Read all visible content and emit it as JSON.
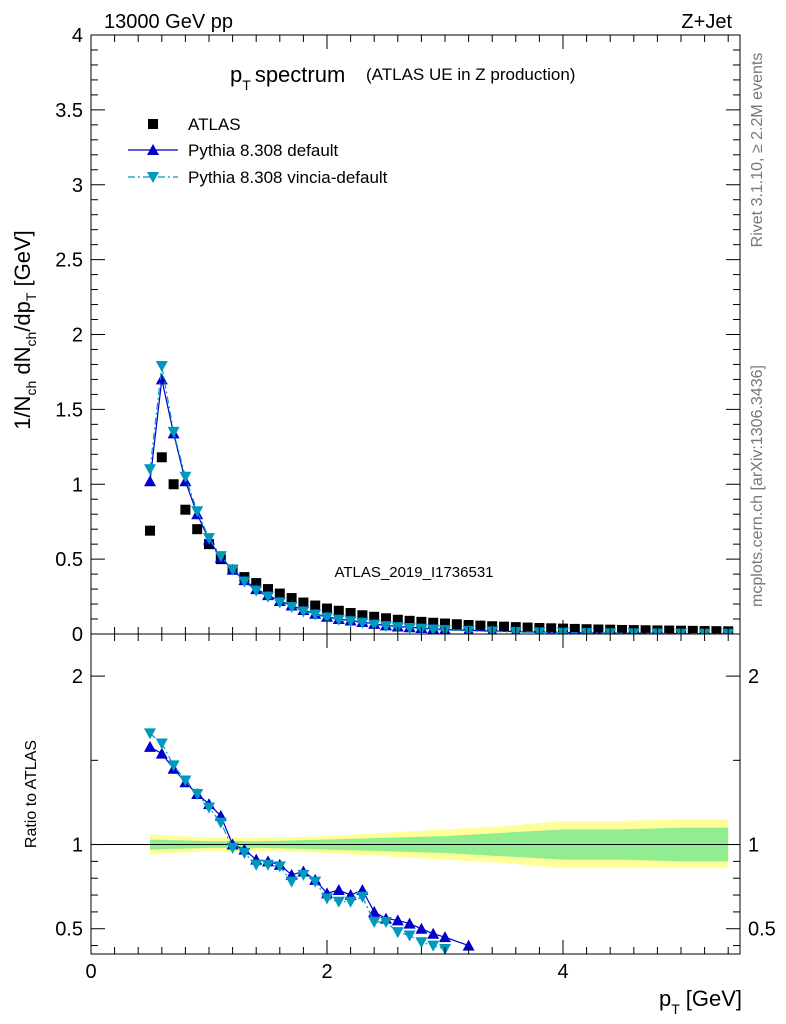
{
  "header": {
    "left": "13000 GeV pp",
    "right": "Z+Jet"
  },
  "side_labels": {
    "rivet": "Rivet 3.1.10, ≥ 2.2M events",
    "mcplots": "mcplots.cern.ch [arXiv:1306.3436]"
  },
  "watermark": "ATLAS_2019_I1736531",
  "colors": {
    "atlas": "#000000",
    "pythia_default": "#0000cc",
    "pythia_vincia": "#0099bb",
    "band_inner": "#90ee90",
    "band_outer": "#ffff99"
  },
  "chart_data": [
    {
      "type": "scatter",
      "title_main": "p",
      "title_sub": "T",
      "title_rest": "spectrum",
      "title_note": "(ATLAS UE in Z production)",
      "ylabel": "1/N_ch dN_ch/dp_T [GeV]",
      "xlim": [
        0,
        5.5
      ],
      "ylim": [
        0,
        4
      ],
      "yticks": [
        "0",
        "0.5",
        "1",
        "1.5",
        "2",
        "2.5",
        "3",
        "3.5",
        "4"
      ],
      "legend_position": "top-left",
      "series": [
        {
          "name": "ATLAS",
          "marker": "square",
          "x": [
            0.5,
            0.6,
            0.7,
            0.8,
            0.9,
            1.0,
            1.1,
            1.2,
            1.3,
            1.4,
            1.5,
            1.6,
            1.7,
            1.8,
            1.9,
            2.0,
            2.1,
            2.2,
            2.3,
            2.4,
            2.5,
            2.6,
            2.7,
            2.8,
            2.9,
            3.0,
            3.1,
            3.2,
            3.3,
            3.4,
            3.5,
            3.6,
            3.7,
            3.8,
            3.9,
            4.0,
            4.1,
            4.2,
            4.3,
            4.4,
            4.5,
            4.6,
            4.7,
            4.8,
            4.9,
            5.0,
            5.1,
            5.2,
            5.3,
            5.4
          ],
          "y": [
            0.69,
            1.18,
            1.0,
            0.83,
            0.7,
            0.6,
            0.5,
            0.43,
            0.38,
            0.34,
            0.3,
            0.27,
            0.24,
            0.21,
            0.19,
            0.17,
            0.155,
            0.14,
            0.125,
            0.115,
            0.105,
            0.095,
            0.088,
            0.081,
            0.075,
            0.07,
            0.065,
            0.06,
            0.056,
            0.052,
            0.049,
            0.046,
            0.043,
            0.04,
            0.038,
            0.036,
            0.034,
            0.032,
            0.03,
            0.029,
            0.027,
            0.026,
            0.025,
            0.024,
            0.023,
            0.022,
            0.021,
            0.02,
            0.019,
            0.018
          ]
        },
        {
          "name": "Pythia 8.308 default",
          "marker": "triangle-up",
          "line": "solid",
          "x": [
            0.5,
            0.6,
            0.7,
            0.8,
            0.9,
            1.0,
            1.1,
            1.2,
            1.3,
            1.4,
            1.5,
            1.6,
            1.7,
            1.8,
            1.9,
            2.0,
            2.1,
            2.2,
            2.3,
            2.4,
            2.5,
            2.6,
            2.7,
            2.8,
            2.9,
            3.0,
            3.2,
            3.4,
            3.6,
            3.8,
            4.0,
            4.2,
            4.4,
            4.6,
            4.8,
            5.0,
            5.2,
            5.4
          ],
          "y": [
            1.02,
            1.7,
            1.34,
            1.02,
            0.8,
            0.63,
            0.51,
            0.43,
            0.36,
            0.3,
            0.26,
            0.22,
            0.19,
            0.16,
            0.135,
            0.115,
            0.1,
            0.09,
            0.08,
            0.068,
            0.058,
            0.05,
            0.045,
            0.04,
            0.035,
            0.03,
            0.024,
            0.02,
            0.016,
            0.013,
            0.01,
            0.008,
            0.006,
            0.005,
            0.004,
            0.003,
            0.002,
            0.0015
          ]
        },
        {
          "name": "Pythia 8.308 vincia-default",
          "marker": "triangle-down",
          "line": "dashdot",
          "x": [
            0.5,
            0.6,
            0.7,
            0.8,
            0.9,
            1.0,
            1.1,
            1.2,
            1.3,
            1.4,
            1.5,
            1.6,
            1.7,
            1.8,
            1.9,
            2.0,
            2.1,
            2.2,
            2.3,
            2.4,
            2.5,
            2.6,
            2.7,
            2.8,
            2.9,
            3.0,
            3.2,
            3.4,
            3.6,
            3.8,
            4.0,
            4.2,
            4.4,
            4.6,
            4.8,
            5.0,
            5.2,
            5.4
          ],
          "y": [
            1.1,
            1.79,
            1.35,
            1.05,
            0.82,
            0.64,
            0.52,
            0.43,
            0.35,
            0.29,
            0.25,
            0.21,
            0.18,
            0.15,
            0.13,
            0.11,
            0.095,
            0.085,
            0.075,
            0.063,
            0.053,
            0.046,
            0.04,
            0.035,
            0.03,
            0.026,
            0.021,
            0.017,
            0.014,
            0.011,
            0.009,
            0.007,
            0.005,
            0.004,
            0.003,
            0.0025,
            0.002,
            0.0015
          ]
        }
      ]
    },
    {
      "type": "line",
      "ylabel": "Ratio to ATLAS",
      "xlabel_main": "p",
      "xlabel_sub": "T",
      "xlabel_rest": "[GeV]",
      "xlim": [
        0,
        5.5
      ],
      "ylim": [
        0.35,
        2.25
      ],
      "xticks": [
        "0",
        "2",
        "4"
      ],
      "yticks": [
        "0.5",
        "1",
        "2"
      ],
      "reference_line": 1,
      "band_x": [
        0.5,
        1.0,
        1.5,
        2.0,
        2.5,
        3.0,
        3.5,
        4.0,
        4.5,
        5.0,
        5.4
      ],
      "band_inner_lo": [
        0.97,
        0.98,
        0.98,
        0.97,
        0.96,
        0.95,
        0.93,
        0.91,
        0.91,
        0.9,
        0.9
      ],
      "band_inner_hi": [
        1.03,
        1.02,
        1.02,
        1.03,
        1.04,
        1.05,
        1.07,
        1.09,
        1.09,
        1.1,
        1.1
      ],
      "band_outer_lo": [
        0.94,
        0.96,
        0.96,
        0.95,
        0.93,
        0.91,
        0.89,
        0.86,
        0.86,
        0.86,
        0.86
      ],
      "band_outer_hi": [
        1.06,
        1.04,
        1.04,
        1.05,
        1.07,
        1.09,
        1.11,
        1.14,
        1.14,
        1.15,
        1.15
      ],
      "series": [
        {
          "name": "Pythia 8.308 default",
          "marker": "triangle-up",
          "x": [
            0.5,
            0.6,
            0.7,
            0.8,
            0.9,
            1.0,
            1.1,
            1.2,
            1.3,
            1.4,
            1.5,
            1.6,
            1.7,
            1.8,
            1.9,
            2.0,
            2.1,
            2.2,
            2.3,
            2.4,
            2.5,
            2.6,
            2.7,
            2.8,
            2.9,
            3.0,
            3.2
          ],
          "y": [
            1.58,
            1.54,
            1.45,
            1.37,
            1.3,
            1.24,
            1.17,
            1.0,
            0.97,
            0.91,
            0.9,
            0.88,
            0.82,
            0.84,
            0.79,
            0.71,
            0.73,
            0.7,
            0.73,
            0.6,
            0.56,
            0.55,
            0.53,
            0.5,
            0.47,
            0.45,
            0.4
          ]
        },
        {
          "name": "Pythia 8.308 vincia-default",
          "marker": "triangle-down",
          "x": [
            0.5,
            0.6,
            0.7,
            0.8,
            0.9,
            1.0,
            1.1,
            1.2,
            1.3,
            1.4,
            1.5,
            1.6,
            1.7,
            1.8,
            1.9,
            2.0,
            2.1,
            2.2,
            2.3,
            2.4,
            2.5,
            2.6,
            2.7,
            2.8,
            2.9,
            3.0
          ],
          "y": [
            1.66,
            1.6,
            1.47,
            1.38,
            1.3,
            1.22,
            1.13,
            0.98,
            0.95,
            0.88,
            0.88,
            0.87,
            0.78,
            0.82,
            0.78,
            0.68,
            0.66,
            0.66,
            0.69,
            0.54,
            0.54,
            0.48,
            0.46,
            0.42,
            0.4,
            0.38
          ]
        }
      ]
    }
  ]
}
